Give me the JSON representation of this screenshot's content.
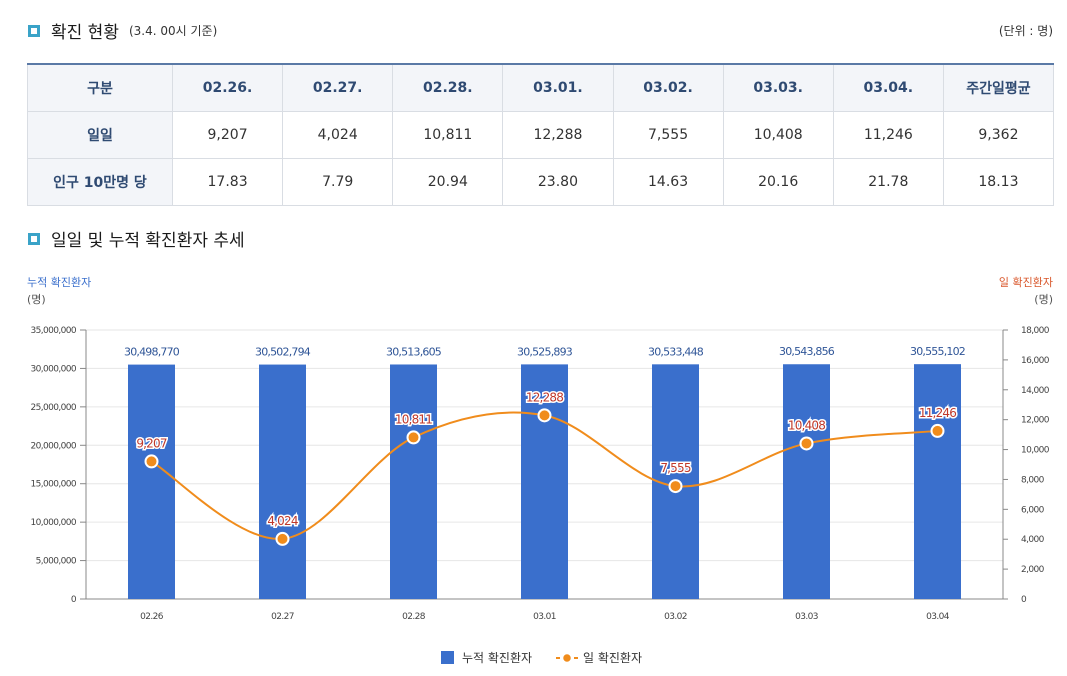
{
  "section1": {
    "title": "확진 현황",
    "subtitle": "(3.4. 00시 기준)",
    "unit": "(단위 : 명)"
  },
  "table": {
    "headers": [
      "구분",
      "02.26.",
      "02.27.",
      "02.28.",
      "03.01.",
      "03.02.",
      "03.03.",
      "03.04.",
      "주간일평균"
    ],
    "rows": [
      {
        "label": "일일",
        "values": [
          "9,207",
          "4,024",
          "10,811",
          "12,288",
          "7,555",
          "10,408",
          "11,246",
          "9,362"
        ]
      },
      {
        "label": "인구 10만명 당",
        "values": [
          "17.83",
          "7.79",
          "20.94",
          "23.80",
          "14.63",
          "20.16",
          "21.78",
          "18.13"
        ]
      }
    ]
  },
  "section2": {
    "title": "일일 및 누적 확진환자 추세"
  },
  "chart_data": {
    "type": "bar",
    "categories": [
      "02.26",
      "02.27",
      "02.28",
      "03.01",
      "03.02",
      "03.03",
      "03.04"
    ],
    "series": [
      {
        "name": "누적 확진환자",
        "type": "bar",
        "axis": "left",
        "color": "#3a6fcc",
        "values": [
          30498770,
          30502794,
          30513605,
          30525893,
          30533448,
          30543856,
          30555102
        ],
        "labels": [
          "30,498,770",
          "30,502,794",
          "30,513,605",
          "30,525,893",
          "30,533,448",
          "30,543,856",
          "30,555,102"
        ]
      },
      {
        "name": "일 확진환자",
        "type": "line",
        "axis": "right",
        "color": "#f08c1c",
        "values": [
          9207,
          4024,
          10811,
          12288,
          7555,
          10408,
          11246
        ],
        "labels": [
          "9,207",
          "4,024",
          "10,811",
          "12,288",
          "7,555",
          "10,408",
          "11,246"
        ]
      }
    ],
    "left_axis": {
      "label": "누적 확진환자",
      "unit": "(명)",
      "range": [
        0,
        35000000
      ],
      "ticks": [
        "0",
        "5,000,000",
        "10,000,000",
        "15,000,000",
        "20,000,000",
        "25,000,000",
        "30,000,000",
        "35,000,000"
      ]
    },
    "right_axis": {
      "label": "일 확진환자",
      "unit": "(명)",
      "range": [
        0,
        18000
      ],
      "ticks": [
        "0",
        "2,000",
        "4,000",
        "6,000",
        "8,000",
        "10,000",
        "12,000",
        "14,000",
        "16,000",
        "18,000"
      ]
    },
    "legend": [
      "누적 확진환자",
      "일 확진환자"
    ],
    "colors": {
      "left_axis_label": "#3a6fcc",
      "right_axis_label": "#d9572b",
      "line_label": "#c0392b"
    }
  }
}
